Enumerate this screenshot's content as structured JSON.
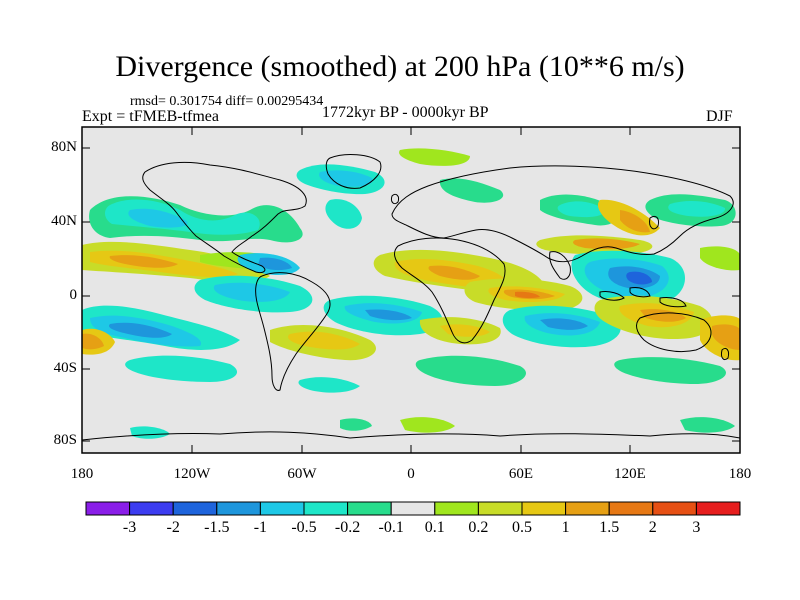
{
  "title": "Divergence (smoothed) at 200 hPa (10**6 m/s)",
  "stats_line": "rmsd= 0.301754 diff= 0.00295434",
  "experiment": "Expt = tFMEB-tfmea",
  "period": "1772kyr BP - 0000kyr BP",
  "season": "DJF",
  "y_ticks": [
    "80N",
    "40N",
    "0",
    "40S",
    "80S"
  ],
  "x_ticks": [
    "180",
    "120W",
    "60W",
    "0",
    "60E",
    "120E",
    "180"
  ],
  "colorbar": {
    "colors": [
      "#8a1ee8",
      "#3c3cf0",
      "#1e64dc",
      "#1e96dc",
      "#1ec8e6",
      "#1ee6c8",
      "#28dc8c",
      "#e6e6e6",
      "#a0e61e",
      "#c8dc28",
      "#e6c814",
      "#e6a014",
      "#e67814",
      "#e65014",
      "#e61e1e"
    ],
    "labels": [
      "-3",
      "-2",
      "-1.5",
      "-1",
      "-0.5",
      "-0.2",
      "-0.1",
      "0.1",
      "0.2",
      "0.5",
      "1",
      "1.5",
      "2",
      "3"
    ]
  }
}
